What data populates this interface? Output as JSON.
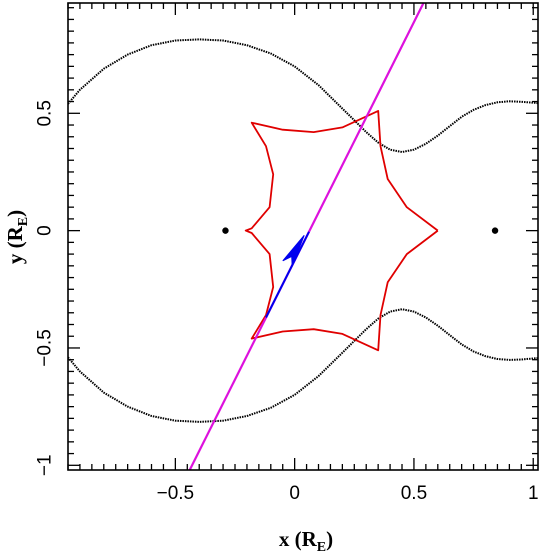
{
  "chart_data": {
    "type": "line",
    "title": "",
    "xlabel": {
      "main": "x (R",
      "sub": "E",
      "close": ")"
    },
    "ylabel": {
      "main": "y (R",
      "sub": "E",
      "close": ")"
    },
    "xlim": [
      -0.95,
      1.02
    ],
    "ylim": [
      -1.02,
      0.97
    ],
    "grid": false,
    "x_ticks": [
      {
        "v": -0.5,
        "label": "−0.5"
      },
      {
        "v": 0,
        "label": "0"
      },
      {
        "v": 0.5,
        "label": "0.5"
      },
      {
        "v": 1,
        "label": "1"
      }
    ],
    "y_ticks": [
      {
        "v": -1,
        "label": "−1"
      },
      {
        "v": -0.5,
        "label": "−0.5"
      },
      {
        "v": 0,
        "label": "0"
      },
      {
        "v": 0.5,
        "label": "0.5"
      }
    ],
    "colors": {
      "critical_curve": "#000000",
      "caustic": "#e00000",
      "source_path": "#dd11dd",
      "source_arrow": "#0000ee",
      "lens": "#000000"
    },
    "lenses": [
      {
        "x": -0.29,
        "y": 0.0
      },
      {
        "x": 0.84,
        "y": 0.0
      }
    ],
    "series": [
      {
        "role": "critical-curve-upper",
        "color": "#000000",
        "x": [
          -0.95,
          -0.9,
          -0.8,
          -0.7,
          -0.6,
          -0.5,
          -0.4,
          -0.3,
          -0.2,
          -0.1,
          0.0,
          0.1,
          0.2,
          0.25,
          0.3,
          0.35,
          0.4,
          0.45,
          0.5,
          0.55,
          0.6,
          0.65,
          0.7,
          0.75,
          0.8,
          0.85,
          0.9,
          0.95,
          1.0,
          1.02
        ],
        "y": [
          0.54,
          0.6,
          0.69,
          0.75,
          0.79,
          0.81,
          0.815,
          0.81,
          0.79,
          0.755,
          0.7,
          0.62,
          0.52,
          0.47,
          0.42,
          0.375,
          0.345,
          0.335,
          0.345,
          0.37,
          0.405,
          0.445,
          0.485,
          0.515,
          0.535,
          0.547,
          0.551,
          0.549,
          0.545,
          0.543
        ]
      },
      {
        "role": "critical-curve-lower",
        "color": "#000000",
        "x": [
          -0.95,
          -0.9,
          -0.8,
          -0.7,
          -0.6,
          -0.5,
          -0.4,
          -0.3,
          -0.2,
          -0.1,
          0.0,
          0.1,
          0.2,
          0.25,
          0.3,
          0.35,
          0.4,
          0.45,
          0.5,
          0.55,
          0.6,
          0.65,
          0.7,
          0.75,
          0.8,
          0.85,
          0.9,
          0.95,
          1.0,
          1.02
        ],
        "y": [
          -0.54,
          -0.6,
          -0.69,
          -0.75,
          -0.79,
          -0.81,
          -0.815,
          -0.81,
          -0.79,
          -0.755,
          -0.7,
          -0.62,
          -0.52,
          -0.47,
          -0.42,
          -0.375,
          -0.345,
          -0.335,
          -0.345,
          -0.37,
          -0.405,
          -0.445,
          -0.485,
          -0.515,
          -0.535,
          -0.547,
          -0.551,
          -0.549,
          -0.545,
          -0.543
        ]
      },
      {
        "role": "caustic",
        "color": "#e00000",
        "x": [
          0.6,
          0.47,
          0.39,
          0.36,
          0.35,
          0.2,
          0.08,
          -0.05,
          -0.18,
          -0.12,
          -0.09,
          -0.105,
          -0.18,
          -0.205,
          -0.18,
          -0.105,
          -0.09,
          -0.12,
          -0.18,
          -0.05,
          0.08,
          0.2,
          0.35,
          0.36,
          0.39,
          0.47,
          0.6
        ],
        "y": [
          0.0,
          0.1,
          0.22,
          0.36,
          0.51,
          0.44,
          0.42,
          0.43,
          0.46,
          0.36,
          0.24,
          0.1,
          0.01,
          0.0,
          -0.01,
          -0.1,
          -0.24,
          -0.36,
          -0.46,
          -0.43,
          -0.42,
          -0.44,
          -0.51,
          -0.36,
          -0.22,
          -0.1,
          0.0
        ]
      },
      {
        "role": "source-trajectory",
        "color": "#dd11dd",
        "x": [
          -0.44,
          0.54
        ],
        "y": [
          -1.02,
          0.97
        ]
      },
      {
        "role": "source-trajectory-highlight",
        "color": "#0000ee",
        "x": [
          -0.12,
          0.06
        ],
        "y": [
          -0.37,
          -0.005
        ]
      }
    ],
    "arrow": {
      "tip": [
        0.04,
        -0.02
      ],
      "tail": [
        -0.03,
        -0.14
      ],
      "half_width": 0.023
    }
  }
}
